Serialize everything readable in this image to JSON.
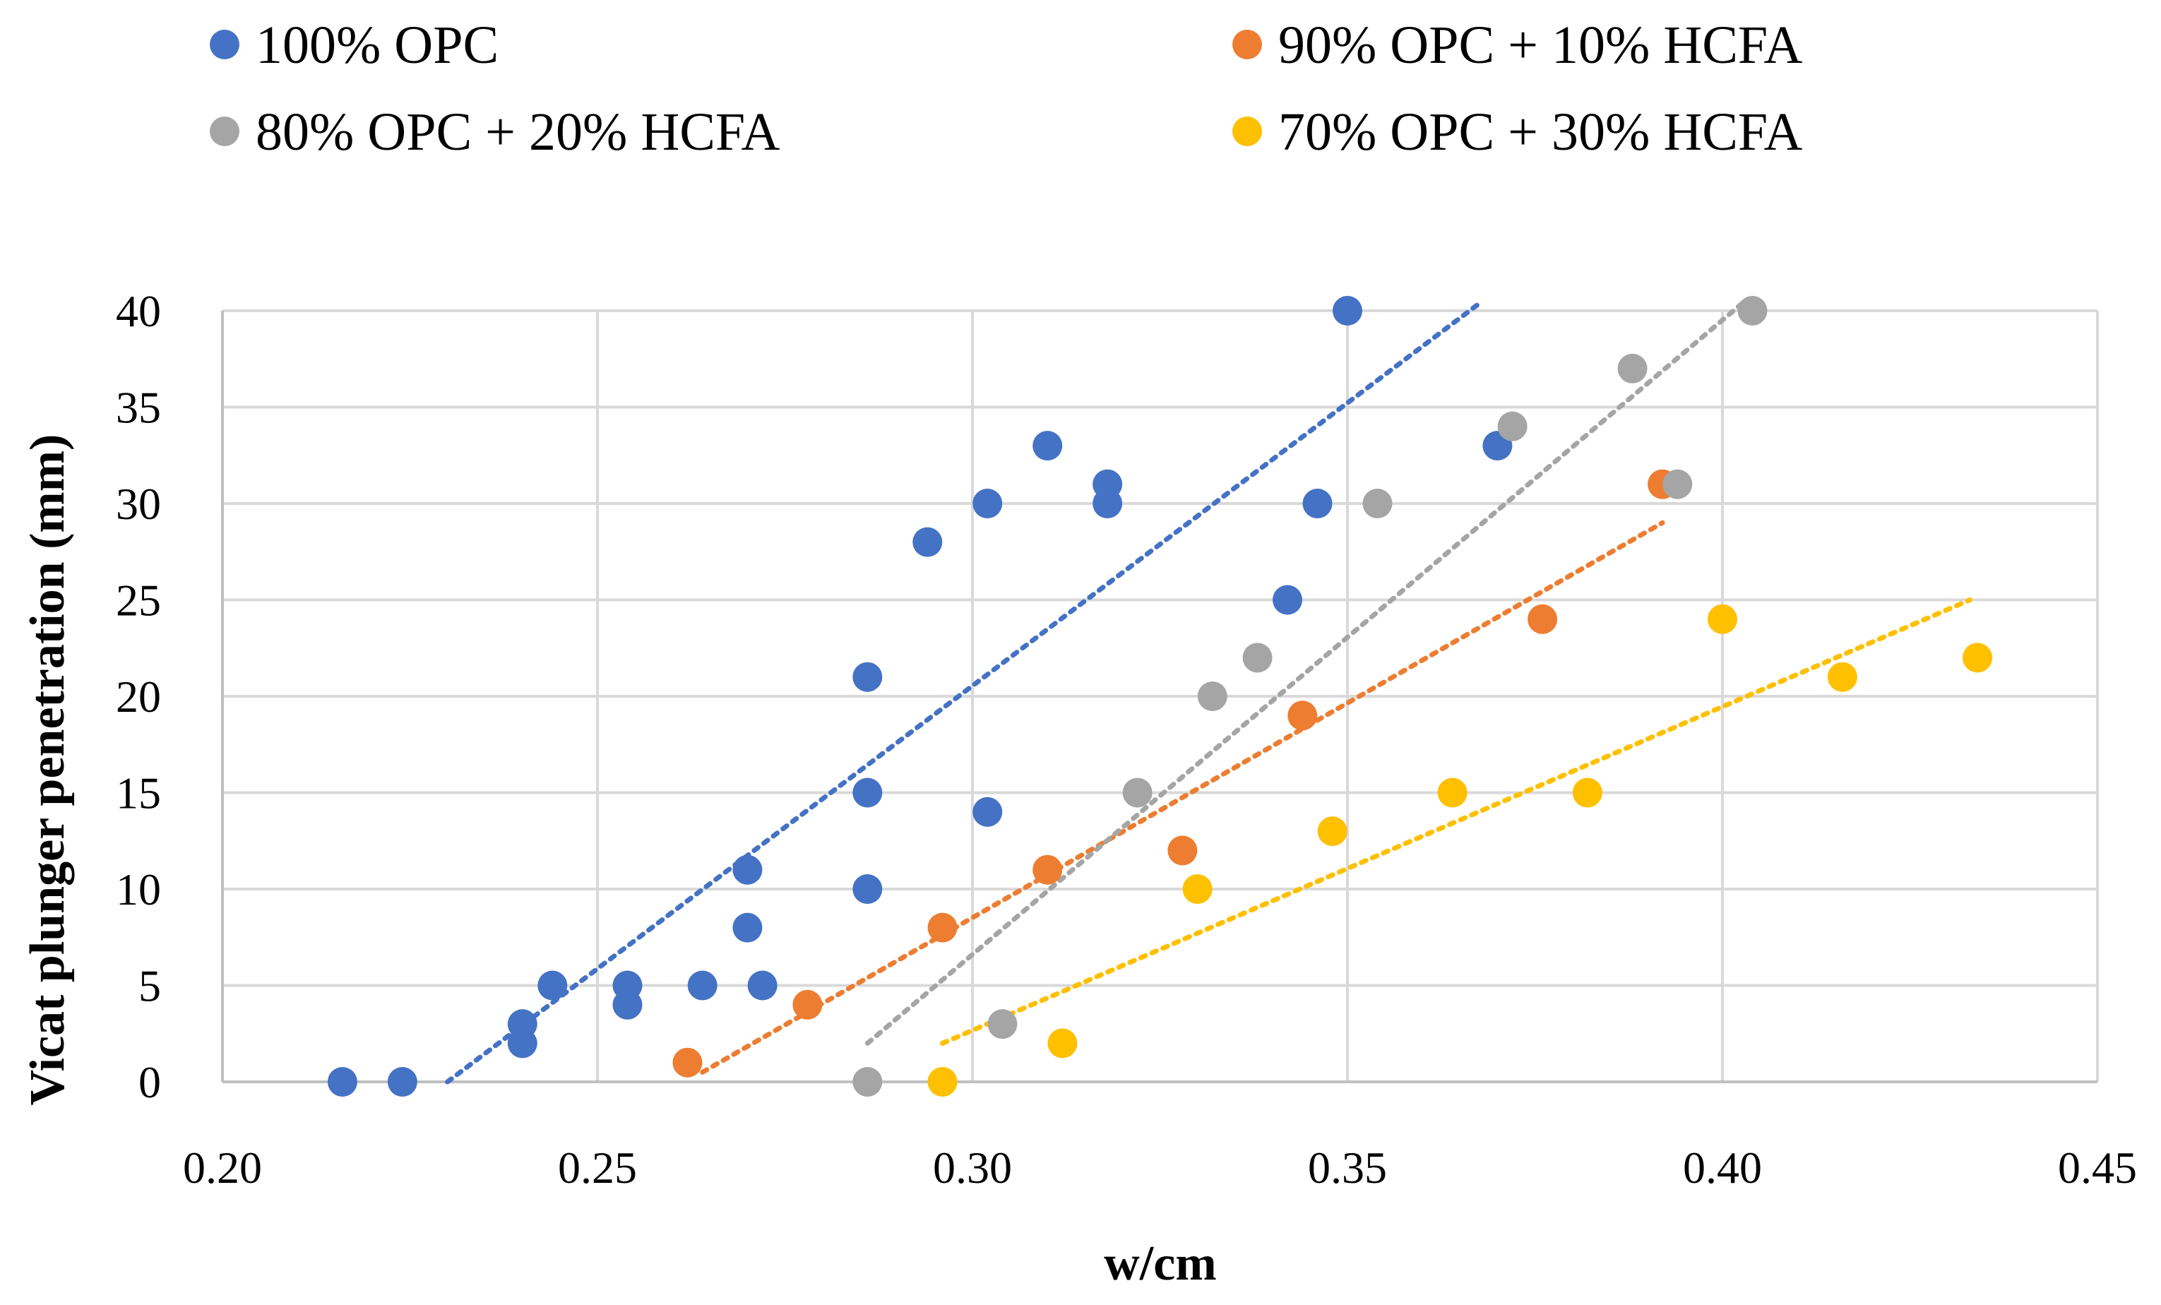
{
  "chart_data": {
    "type": "scatter",
    "title": "",
    "xlabel": "w/cm",
    "ylabel": "Vicat plunger penetration (mm)",
    "xlim": [
      0.2,
      0.45
    ],
    "ylim": [
      0,
      40
    ],
    "x_ticks": [
      "0.20",
      "0.25",
      "0.30",
      "0.35",
      "0.40",
      "0.45"
    ],
    "y_ticks": [
      "0",
      "5",
      "10",
      "15",
      "20",
      "25",
      "30",
      "35",
      "40"
    ],
    "x_tick_values": [
      0.2,
      0.25,
      0.3,
      0.35,
      0.4,
      0.45
    ],
    "y_tick_values": [
      0,
      5,
      10,
      15,
      20,
      25,
      30,
      35,
      40
    ],
    "grid": true,
    "legend_position": "top",
    "series": [
      {
        "name": "100% OPC",
        "color": "#4472C4",
        "points": [
          [
            0.216,
            0
          ],
          [
            0.224,
            0
          ],
          [
            0.24,
            2
          ],
          [
            0.24,
            3
          ],
          [
            0.244,
            5
          ],
          [
            0.254,
            4
          ],
          [
            0.254,
            5
          ],
          [
            0.264,
            5
          ],
          [
            0.27,
            8
          ],
          [
            0.27,
            11
          ],
          [
            0.272,
            5
          ],
          [
            0.286,
            10
          ],
          [
            0.286,
            15
          ],
          [
            0.286,
            21
          ],
          [
            0.294,
            28
          ],
          [
            0.302,
            14
          ],
          [
            0.302,
            30
          ],
          [
            0.31,
            33
          ],
          [
            0.318,
            30
          ],
          [
            0.318,
            31
          ],
          [
            0.342,
            25
          ],
          [
            0.346,
            30
          ],
          [
            0.35,
            40
          ],
          [
            0.37,
            33
          ]
        ],
        "trendline": [
          [
            0.23,
            0
          ],
          [
            0.368,
            40.5
          ]
        ]
      },
      {
        "name": "90% OPC + 10% HCFA",
        "color": "#ED7D31",
        "points": [
          [
            0.262,
            1
          ],
          [
            0.278,
            4
          ],
          [
            0.296,
            8
          ],
          [
            0.31,
            11
          ],
          [
            0.328,
            12
          ],
          [
            0.344,
            19
          ],
          [
            0.376,
            24
          ],
          [
            0.392,
            31
          ]
        ],
        "trendline": [
          [
            0.264,
            0.5
          ],
          [
            0.392,
            29
          ]
        ]
      },
      {
        "name": "80% OPC + 20% HCFA",
        "color": "#A5A5A5",
        "points": [
          [
            0.286,
            0
          ],
          [
            0.304,
            3
          ],
          [
            0.322,
            15
          ],
          [
            0.332,
            20
          ],
          [
            0.338,
            22
          ],
          [
            0.354,
            30
          ],
          [
            0.372,
            34
          ],
          [
            0.388,
            37
          ],
          [
            0.394,
            31
          ],
          [
            0.404,
            40
          ]
        ],
        "trendline": [
          [
            0.286,
            2
          ],
          [
            0.403,
            40.5
          ]
        ]
      },
      {
        "name": "70% OPC + 30% HCFA",
        "color": "#FFC000",
        "points": [
          [
            0.296,
            0
          ],
          [
            0.312,
            2
          ],
          [
            0.33,
            10
          ],
          [
            0.348,
            13
          ],
          [
            0.364,
            15
          ],
          [
            0.382,
            15
          ],
          [
            0.4,
            24
          ],
          [
            0.416,
            21
          ],
          [
            0.434,
            22
          ]
        ],
        "trendline": [
          [
            0.296,
            2
          ],
          [
            0.433,
            25
          ]
        ]
      }
    ]
  }
}
